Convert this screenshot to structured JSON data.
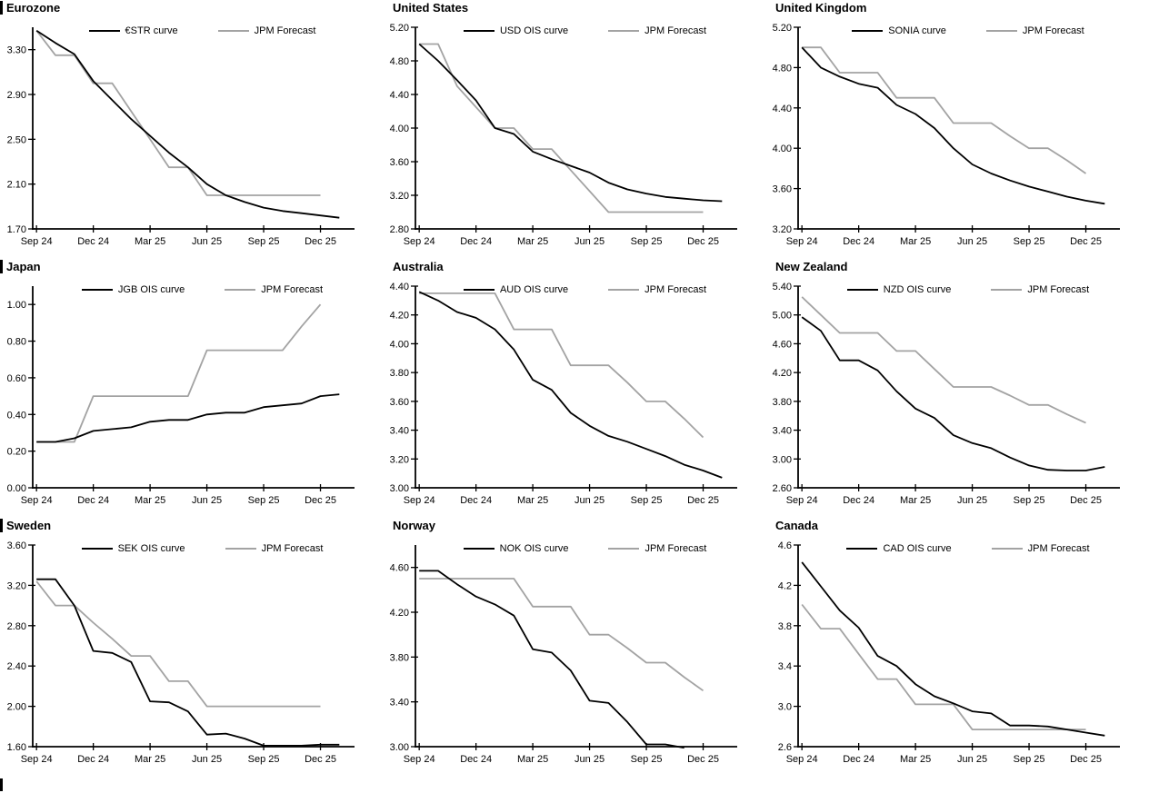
{
  "colors": {
    "background": "#ffffff",
    "line_black": "#000000",
    "line_gray": "#a3a3a3",
    "axis": "#000000",
    "text": "#000000"
  },
  "x_axis": {
    "tick_labels": [
      "Sep 24",
      "Dec 24",
      "Mar 25",
      "Jun 25",
      "Sep 25",
      "Dec 25"
    ],
    "tick_positions": [
      0,
      3,
      6,
      9,
      12,
      15
    ],
    "x_min": -0.2,
    "x_max": 16.8
  },
  "chart_data": [
    {
      "type": "line",
      "title": "Eurozone",
      "ylim": [
        1.7,
        3.5
      ],
      "yticks": [
        1.7,
        2.1,
        2.5,
        2.9,
        3.3
      ],
      "y_decimals": 2,
      "grid": false,
      "legend_position": "top-center",
      "series": [
        {
          "name": "€STR curve",
          "color": "black",
          "values": [
            3.47,
            3.36,
            3.26,
            3.02,
            2.85,
            2.68,
            2.53,
            2.38,
            2.25,
            2.1,
            2.0,
            1.94,
            1.89,
            1.86,
            1.84,
            1.82,
            1.8
          ]
        },
        {
          "name": "JPM Forecast",
          "color": "gray",
          "values": [
            3.47,
            3.25,
            3.25,
            3.0,
            3.0,
            2.75,
            2.5,
            2.25,
            2.25,
            2.0,
            2.0,
            2.0,
            2.0,
            2.0,
            2.0,
            2.0
          ]
        }
      ]
    },
    {
      "type": "line",
      "title": "United States",
      "ylim": [
        2.8,
        5.2
      ],
      "yticks": [
        2.8,
        3.2,
        3.6,
        4.0,
        4.4,
        4.8,
        5.2
      ],
      "y_decimals": 2,
      "grid": false,
      "legend_position": "top-center",
      "series": [
        {
          "name": "USD OIS curve",
          "color": "black",
          "values": [
            5.0,
            4.8,
            4.57,
            4.33,
            4.0,
            3.93,
            3.72,
            3.63,
            3.55,
            3.47,
            3.35,
            3.27,
            3.22,
            3.18,
            3.16,
            3.14,
            3.13
          ]
        },
        {
          "name": "JPM Forecast",
          "color": "gray",
          "values": [
            5.0,
            5.0,
            4.5,
            4.25,
            4.0,
            4.0,
            3.75,
            3.75,
            3.5,
            3.25,
            3.0,
            3.0,
            3.0,
            3.0,
            3.0,
            3.0
          ]
        }
      ]
    },
    {
      "type": "line",
      "title": "United Kingdom",
      "ylim": [
        3.2,
        5.2
      ],
      "yticks": [
        3.2,
        3.6,
        4.0,
        4.4,
        4.8,
        5.2
      ],
      "y_decimals": 2,
      "grid": false,
      "legend_position": "top-center",
      "series": [
        {
          "name": "SONIA curve",
          "color": "black",
          "values": [
            5.0,
            4.8,
            4.71,
            4.64,
            4.6,
            4.43,
            4.34,
            4.2,
            4.0,
            3.84,
            3.75,
            3.68,
            3.62,
            3.57,
            3.52,
            3.48,
            3.45
          ]
        },
        {
          "name": "JPM Forecast",
          "color": "gray",
          "values": [
            5.0,
            5.0,
            4.75,
            4.75,
            4.75,
            4.5,
            4.5,
            4.5,
            4.25,
            4.25,
            4.25,
            4.12,
            4.0,
            4.0,
            3.88,
            3.75
          ]
        }
      ]
    },
    {
      "type": "line",
      "title": "Japan",
      "ylim": [
        0.0,
        1.1
      ],
      "yticks": [
        0.0,
        0.2,
        0.4,
        0.6,
        0.8,
        1.0
      ],
      "y_decimals": 2,
      "grid": false,
      "legend_position": "top-center",
      "series": [
        {
          "name": "JGB OIS curve",
          "color": "black",
          "values": [
            0.25,
            0.25,
            0.27,
            0.31,
            0.32,
            0.33,
            0.36,
            0.37,
            0.37,
            0.4,
            0.41,
            0.41,
            0.44,
            0.45,
            0.46,
            0.5,
            0.51
          ]
        },
        {
          "name": "JPM Forecast",
          "color": "gray",
          "values": [
            0.25,
            0.25,
            0.25,
            0.5,
            0.5,
            0.5,
            0.5,
            0.5,
            0.5,
            0.75,
            0.75,
            0.75,
            0.75,
            0.75,
            0.88,
            1.0
          ]
        }
      ]
    },
    {
      "type": "line",
      "title": "Australia",
      "ylim": [
        3.0,
        4.4
      ],
      "yticks": [
        3.0,
        3.2,
        3.4,
        3.6,
        3.8,
        4.0,
        4.2,
        4.4
      ],
      "y_decimals": 2,
      "grid": false,
      "legend_position": "top-center",
      "series": [
        {
          "name": "AUD OIS curve",
          "color": "black",
          "values": [
            4.36,
            4.3,
            4.22,
            4.18,
            4.1,
            3.96,
            3.75,
            3.68,
            3.52,
            3.43,
            3.36,
            3.32,
            3.27,
            3.22,
            3.16,
            3.12,
            3.07
          ]
        },
        {
          "name": "JPM Forecast",
          "color": "gray",
          "values": [
            4.35,
            4.35,
            4.35,
            4.35,
            4.35,
            4.1,
            4.1,
            4.1,
            3.85,
            3.85,
            3.85,
            3.73,
            3.6,
            3.6,
            3.48,
            3.35
          ]
        }
      ]
    },
    {
      "type": "line",
      "title": "New Zealand",
      "ylim": [
        2.6,
        5.4
      ],
      "yticks": [
        2.6,
        3.0,
        3.4,
        3.8,
        4.2,
        4.6,
        5.0,
        5.4
      ],
      "y_decimals": 2,
      "grid": false,
      "legend_position": "top-center",
      "series": [
        {
          "name": "NZD OIS curve",
          "color": "black",
          "values": [
            4.97,
            4.78,
            4.37,
            4.37,
            4.23,
            3.94,
            3.7,
            3.57,
            3.33,
            3.22,
            3.15,
            3.02,
            2.91,
            2.85,
            2.84,
            2.84,
            2.89
          ]
        },
        {
          "name": "JPM Forecast",
          "color": "gray",
          "values": [
            5.25,
            5.0,
            4.75,
            4.75,
            4.75,
            4.5,
            4.5,
            4.25,
            4.0,
            4.0,
            4.0,
            3.88,
            3.75,
            3.75,
            3.62,
            3.5
          ]
        }
      ]
    },
    {
      "type": "line",
      "title": "Sweden",
      "ylim": [
        1.6,
        3.6
      ],
      "yticks": [
        1.6,
        2.0,
        2.4,
        2.8,
        3.2,
        3.6
      ],
      "y_decimals": 2,
      "grid": false,
      "legend_position": "top-center",
      "series": [
        {
          "name": "SEK OIS curve",
          "color": "black",
          "values": [
            3.26,
            3.26,
            3.0,
            2.55,
            2.53,
            2.44,
            2.05,
            2.04,
            1.95,
            1.72,
            1.73,
            1.68,
            1.61,
            1.61,
            1.61,
            1.62,
            1.62
          ]
        },
        {
          "name": "JPM Forecast",
          "color": "gray",
          "values": [
            3.24,
            3.0,
            3.0,
            2.83,
            2.67,
            2.5,
            2.5,
            2.25,
            2.25,
            2.0,
            2.0,
            2.0,
            2.0,
            2.0,
            2.0,
            2.0
          ]
        }
      ]
    },
    {
      "type": "line",
      "title": "Norway",
      "ylim": [
        3.0,
        4.8
      ],
      "yticks": [
        3.0,
        3.4,
        3.8,
        4.2,
        4.6
      ],
      "y_decimals": 2,
      "grid": false,
      "legend_position": "top-center",
      "series": [
        {
          "name": "NOK OIS curve",
          "color": "black",
          "values": [
            4.57,
            4.57,
            4.45,
            4.34,
            4.27,
            4.17,
            3.87,
            3.84,
            3.68,
            3.41,
            3.39,
            3.22,
            3.02,
            3.02,
            2.99
          ]
        },
        {
          "name": "JPM Forecast",
          "color": "gray",
          "values": [
            4.5,
            4.5,
            4.5,
            4.5,
            4.5,
            4.5,
            4.25,
            4.25,
            4.25,
            4.0,
            4.0,
            3.88,
            3.75,
            3.75,
            3.62,
            3.5
          ]
        }
      ]
    },
    {
      "type": "line",
      "title": "Canada",
      "ylim": [
        2.6,
        4.6
      ],
      "yticks": [
        2.6,
        3.0,
        3.4,
        3.8,
        4.2,
        4.6
      ],
      "y_decimals": 1,
      "grid": false,
      "legend_position": "top-center",
      "series": [
        {
          "name": "CAD OIS curve",
          "color": "black",
          "values": [
            4.43,
            4.19,
            3.95,
            3.78,
            3.5,
            3.4,
            3.22,
            3.1,
            3.03,
            2.95,
            2.93,
            2.81,
            2.81,
            2.8,
            2.77,
            2.74,
            2.71
          ]
        },
        {
          "name": "JPM Forecast",
          "color": "gray",
          "values": [
            4.01,
            3.77,
            3.77,
            3.52,
            3.27,
            3.27,
            3.02,
            3.02,
            3.02,
            2.77,
            2.77,
            2.77,
            2.77,
            2.77,
            2.77,
            2.77
          ]
        }
      ]
    }
  ]
}
